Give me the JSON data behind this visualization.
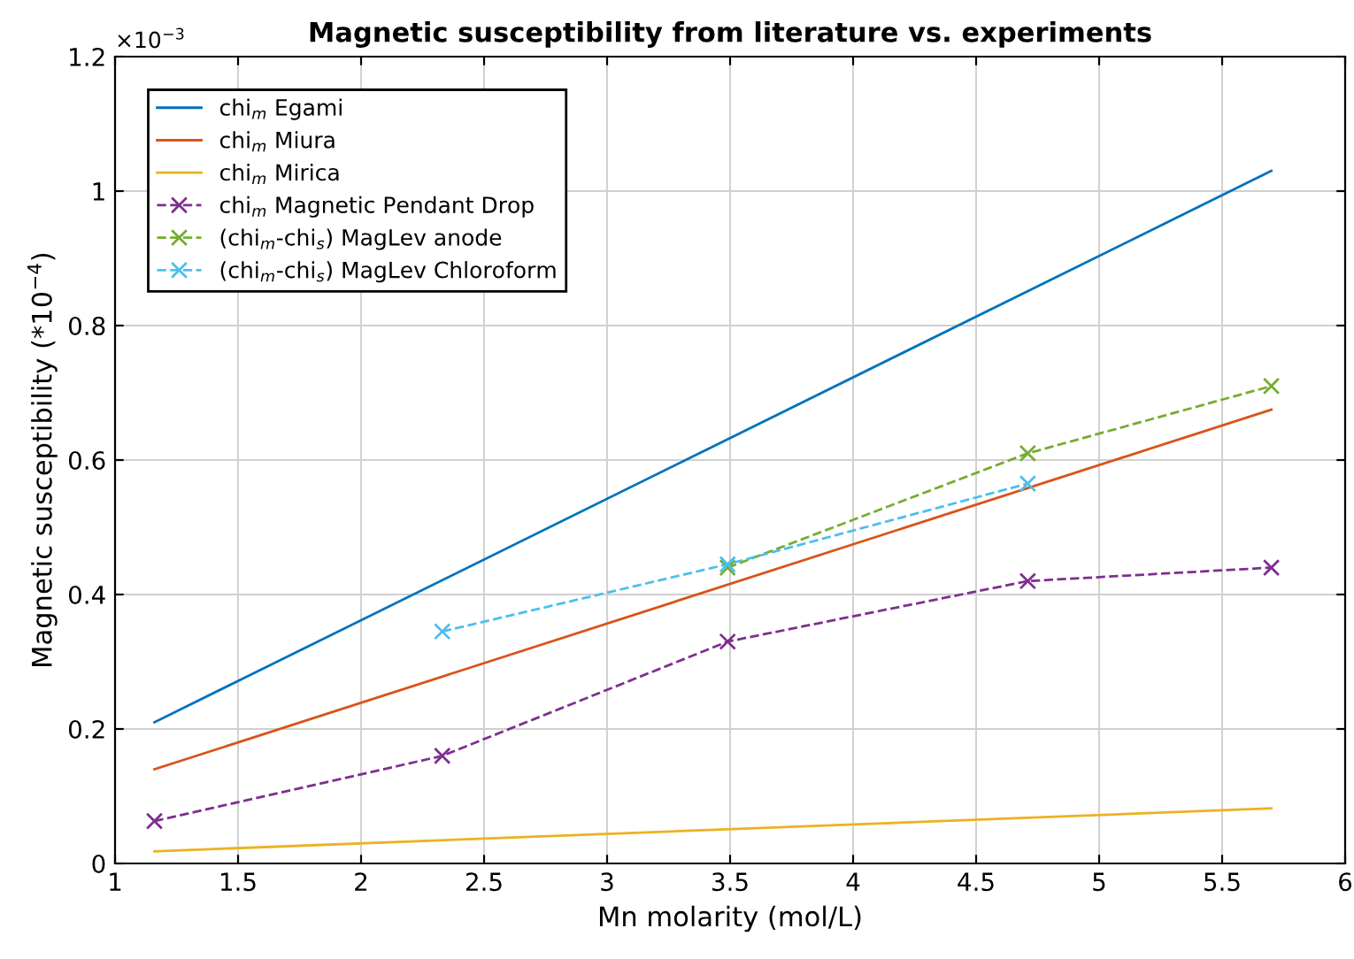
{
  "chart_data": {
    "type": "line",
    "title": "Magnetic susceptibility from literature vs. experiments",
    "xlabel": "Mn molarity (mol/L)",
    "ylabel": "Magnetic susceptibility (*10$^{−4}$)",
    "annotations": [
      "×10$^{−3}$"
    ],
    "xlim": [
      1,
      6
    ],
    "xticks": [
      1,
      1.5,
      2,
      2.5,
      3,
      3.5,
      4,
      4.5,
      5,
      5.5,
      6
    ],
    "ylim": [
      0,
      1.2
    ],
    "yticks": [
      0,
      0.2,
      0.4,
      0.6,
      0.8,
      1,
      1.2
    ],
    "grid": true,
    "legend": "top left",
    "series": [
      {
        "name": "chi$_{m}$ Egami",
        "color": "#0072bd",
        "x": [
          1.16,
          5.7
        ],
        "values": [
          0.21,
          1.03
        ],
        "marker": "none",
        "line_style": "solid"
      },
      {
        "name": "chi$_{m}$ Miura",
        "color": "#d95319",
        "x": [
          1.16,
          5.7
        ],
        "values": [
          0.14,
          0.675
        ],
        "marker": "none",
        "line_style": "solid"
      },
      {
        "name": "chi$_{m}$ Mirica",
        "color": "#edb120",
        "x": [
          1.16,
          5.7
        ],
        "values": [
          0.018,
          0.082
        ],
        "marker": "none",
        "line_style": "solid"
      },
      {
        "name": "chi$_{m}$ Magnetic Pendant Drop",
        "color": "#7e2f8e",
        "x": [
          1.16,
          2.33,
          3.49,
          4.71,
          5.7
        ],
        "values": [
          0.063,
          0.16,
          0.33,
          0.42,
          0.44
        ],
        "marker": "cross",
        "line_style": "dashed"
      },
      {
        "name": "(chi$_{m}$-chi$_{s}$) MagLev anode",
        "color": "#77ac30",
        "x": [
          3.49,
          4.71,
          5.7
        ],
        "values": [
          0.44,
          0.61,
          0.71
        ],
        "marker": "cross",
        "line_style": "dashed"
      },
      {
        "name": "(chi$_{m}$-chi$_{s}$) MagLev Chloroform",
        "color": "#4dbeee",
        "x": [
          2.33,
          3.49,
          4.71
        ],
        "values": [
          0.345,
          0.445,
          0.565
        ],
        "marker": "cross",
        "line_style": "dashed"
      }
    ]
  }
}
